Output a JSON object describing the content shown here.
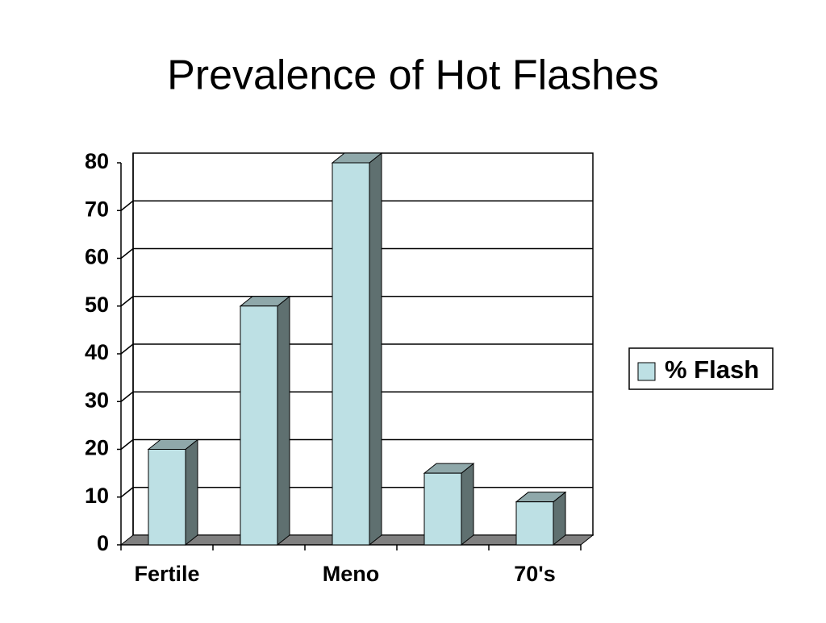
{
  "chart_data": {
    "type": "bar3d",
    "title": "Prevalence of Hot Flashes",
    "categories": [
      "Fertile",
      null,
      "Meno",
      null,
      "70's"
    ],
    "series": [
      {
        "name": "% Flash",
        "color": "#bde0e4",
        "values": [
          20,
          50,
          80,
          15,
          9
        ]
      }
    ],
    "ylim": [
      0,
      80
    ],
    "yticks": [
      0,
      10,
      20,
      30,
      40,
      50,
      60,
      70,
      80
    ],
    "grid": true,
    "legend": "right"
  }
}
